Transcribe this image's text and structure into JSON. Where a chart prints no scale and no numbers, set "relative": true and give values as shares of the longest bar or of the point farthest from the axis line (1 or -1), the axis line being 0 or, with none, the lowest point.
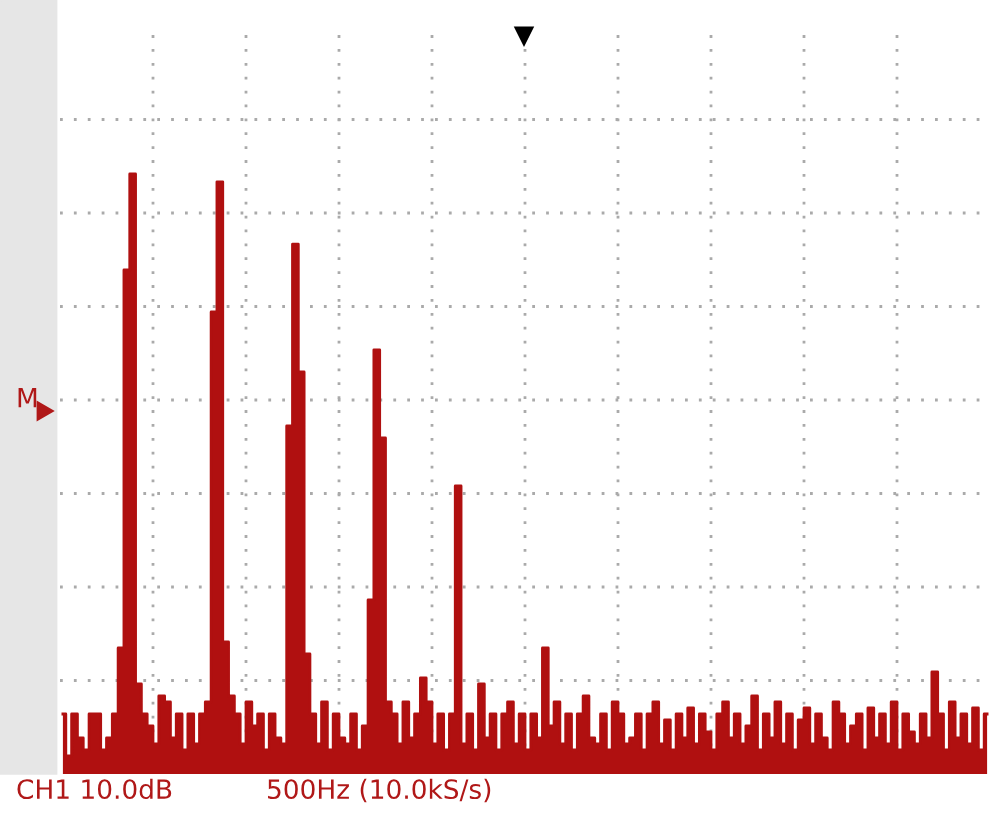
{
  "chart_data": {
    "type": "area",
    "relative": true,
    "color": "#b01010",
    "grid": true,
    "categories": [
      null,
      null,
      null,
      null,
      null,
      null,
      null,
      null,
      null,
      null,
      null,
      null,
      null,
      null,
      null,
      null,
      null,
      null,
      null,
      null,
      null,
      null,
      null,
      null,
      null,
      null,
      null,
      null,
      null,
      null,
      null,
      null,
      null,
      null,
      null,
      null,
      null,
      null,
      null,
      null,
      null,
      null,
      null,
      null,
      null,
      null,
      null,
      null,
      null,
      null,
      null,
      null,
      null,
      null,
      null,
      null,
      null,
      null,
      null,
      null,
      null,
      null,
      null,
      null,
      null,
      null,
      null,
      null,
      null,
      null,
      null,
      null,
      null,
      null,
      null,
      null,
      null,
      null,
      null,
      null,
      null,
      null,
      null,
      null,
      null,
      null,
      null,
      null,
      null,
      null,
      null,
      null,
      null,
      null,
      null,
      null,
      null,
      null,
      null,
      null,
      null,
      null,
      null,
      null,
      null,
      null,
      null,
      null,
      null,
      null,
      null,
      null,
      null,
      null,
      null,
      null,
      null,
      null,
      null,
      null,
      null,
      null,
      null,
      null,
      null,
      null,
      null,
      null,
      null,
      null,
      null,
      null,
      null,
      null,
      null,
      null,
      null,
      null,
      null,
      null,
      null,
      null,
      null,
      null,
      null,
      null,
      null,
      null,
      null,
      null,
      null,
      null,
      null,
      null,
      null,
      null,
      null,
      null,
      null,
      null
    ],
    "values": [
      0.1,
      0.03,
      0.1,
      0.06,
      0.04,
      0.1,
      0.1,
      0.04,
      0.06,
      0.1,
      0.21,
      0.84,
      1.0,
      0.15,
      0.1,
      0.08,
      0.05,
      0.13,
      0.12,
      0.06,
      0.1,
      0.04,
      0.1,
      0.05,
      0.1,
      0.12,
      0.77,
      0.987,
      0.22,
      0.13,
      0.1,
      0.05,
      0.12,
      0.08,
      0.1,
      0.04,
      0.1,
      0.06,
      0.05,
      0.58,
      0.883,
      0.67,
      0.2,
      0.1,
      0.05,
      0.12,
      0.04,
      0.1,
      0.06,
      0.05,
      0.1,
      0.04,
      0.08,
      0.29,
      0.707,
      0.56,
      0.12,
      0.1,
      0.05,
      0.12,
      0.06,
      0.1,
      0.16,
      0.12,
      0.05,
      0.1,
      0.04,
      0.1,
      0.48,
      0.05,
      0.1,
      0.04,
      0.15,
      0.06,
      0.1,
      0.04,
      0.1,
      0.12,
      0.05,
      0.1,
      0.04,
      0.1,
      0.06,
      0.21,
      0.08,
      0.12,
      0.05,
      0.1,
      0.04,
      0.1,
      0.13,
      0.06,
      0.05,
      0.1,
      0.04,
      0.12,
      0.1,
      0.05,
      0.06,
      0.1,
      0.04,
      0.1,
      0.12,
      0.05,
      0.09,
      0.04,
      0.1,
      0.06,
      0.11,
      0.05,
      0.1,
      0.07,
      0.04,
      0.1,
      0.12,
      0.06,
      0.1,
      0.05,
      0.08,
      0.13,
      0.04,
      0.1,
      0.06,
      0.12,
      0.05,
      0.1,
      0.04,
      0.09,
      0.11,
      0.05,
      0.1,
      0.06,
      0.04,
      0.12,
      0.1,
      0.05,
      0.08,
      0.1,
      0.04,
      0.11,
      0.06,
      0.1,
      0.05,
      0.12,
      0.04,
      0.1,
      0.07,
      0.05,
      0.1,
      0.06,
      0.17,
      0.1,
      0.04,
      0.12,
      0.06,
      0.1,
      0.05,
      0.11,
      0.04,
      0.1
    ],
    "annotations": [
      "CH1 10.0dB",
      "500Hz (10.0kS/s)",
      "M"
    ]
  }
}
